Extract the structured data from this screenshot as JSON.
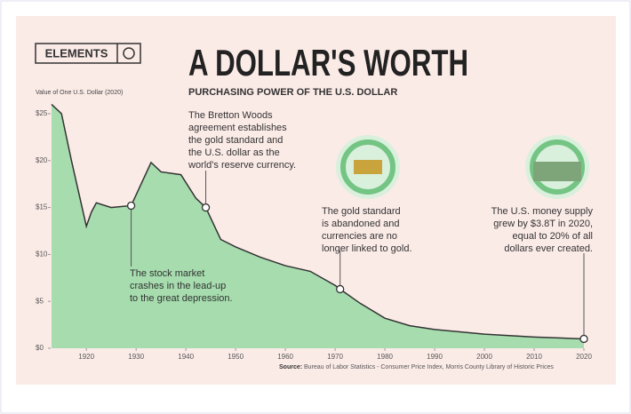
{
  "chart_data": {
    "type": "area",
    "brand": "ELEMENTS",
    "title": "A DOLLAR'S WORTH",
    "subtitle": "PURCHASING POWER OF THE U.S. DOLLAR",
    "y_label": "Value of One U.S. Dollar (2020)",
    "source_label": "Source:",
    "source": "Bureau of Labor Statistics - Consumer Price Index, Morris County Library of Historic Prices",
    "x": [
      1913,
      1915,
      1917,
      1920,
      1921,
      1922,
      1925,
      1929,
      1933,
      1935,
      1939,
      1942,
      1944,
      1947,
      1950,
      1955,
      1960,
      1965,
      1970,
      1971,
      1975,
      1980,
      1985,
      1990,
      2000,
      2010,
      2020
    ],
    "series": [
      {
        "name": "Value of One U.S. Dollar (2020)",
        "color": "#a6dcae",
        "line_color": "#333333",
        "values": [
          26,
          25,
          20,
          13,
          14.5,
          15.5,
          15,
          15.2,
          19.8,
          18.8,
          18.5,
          16,
          15,
          11.6,
          10.8,
          9.7,
          8.8,
          8.2,
          6.7,
          6.3,
          4.8,
          3.2,
          2.4,
          2,
          1.5,
          1.2,
          1
        ]
      }
    ],
    "xlim": [
      1913,
      2020
    ],
    "ylim": [
      0,
      26
    ],
    "xticks": [
      1920,
      1930,
      1940,
      1950,
      1960,
      1970,
      1980,
      1990,
      2000,
      2010,
      2020
    ],
    "yticks": [
      {
        "value": 0,
        "label": "$0"
      },
      {
        "value": 5,
        "label": "$5"
      },
      {
        "value": 10,
        "label": "$10"
      },
      {
        "value": 15,
        "label": "$15"
      },
      {
        "value": 20,
        "label": "$20"
      },
      {
        "value": 25,
        "label": "$25"
      }
    ],
    "annotations": [
      {
        "x": 1929,
        "y": 15.2,
        "lines": [
          "The stock market",
          "crashes in the lead-up",
          "to the great depression."
        ]
      },
      {
        "x": 1944,
        "y": 15,
        "lines": [
          "The Bretton Woods",
          "agreement establishes",
          "the gold standard and",
          "the U.S. dollar as the",
          "world's reserve currency."
        ]
      },
      {
        "x": 1971,
        "y": 6.3,
        "lines": [
          "The gold standard",
          "is abandoned and",
          "currencies are no",
          "longer linked to gold."
        ]
      },
      {
        "x": 2020,
        "y": 1,
        "lines": [
          "The U.S. money supply",
          "grew by $3.8T in 2020,",
          "equal to 20% of all",
          "dollars ever created."
        ]
      }
    ]
  }
}
